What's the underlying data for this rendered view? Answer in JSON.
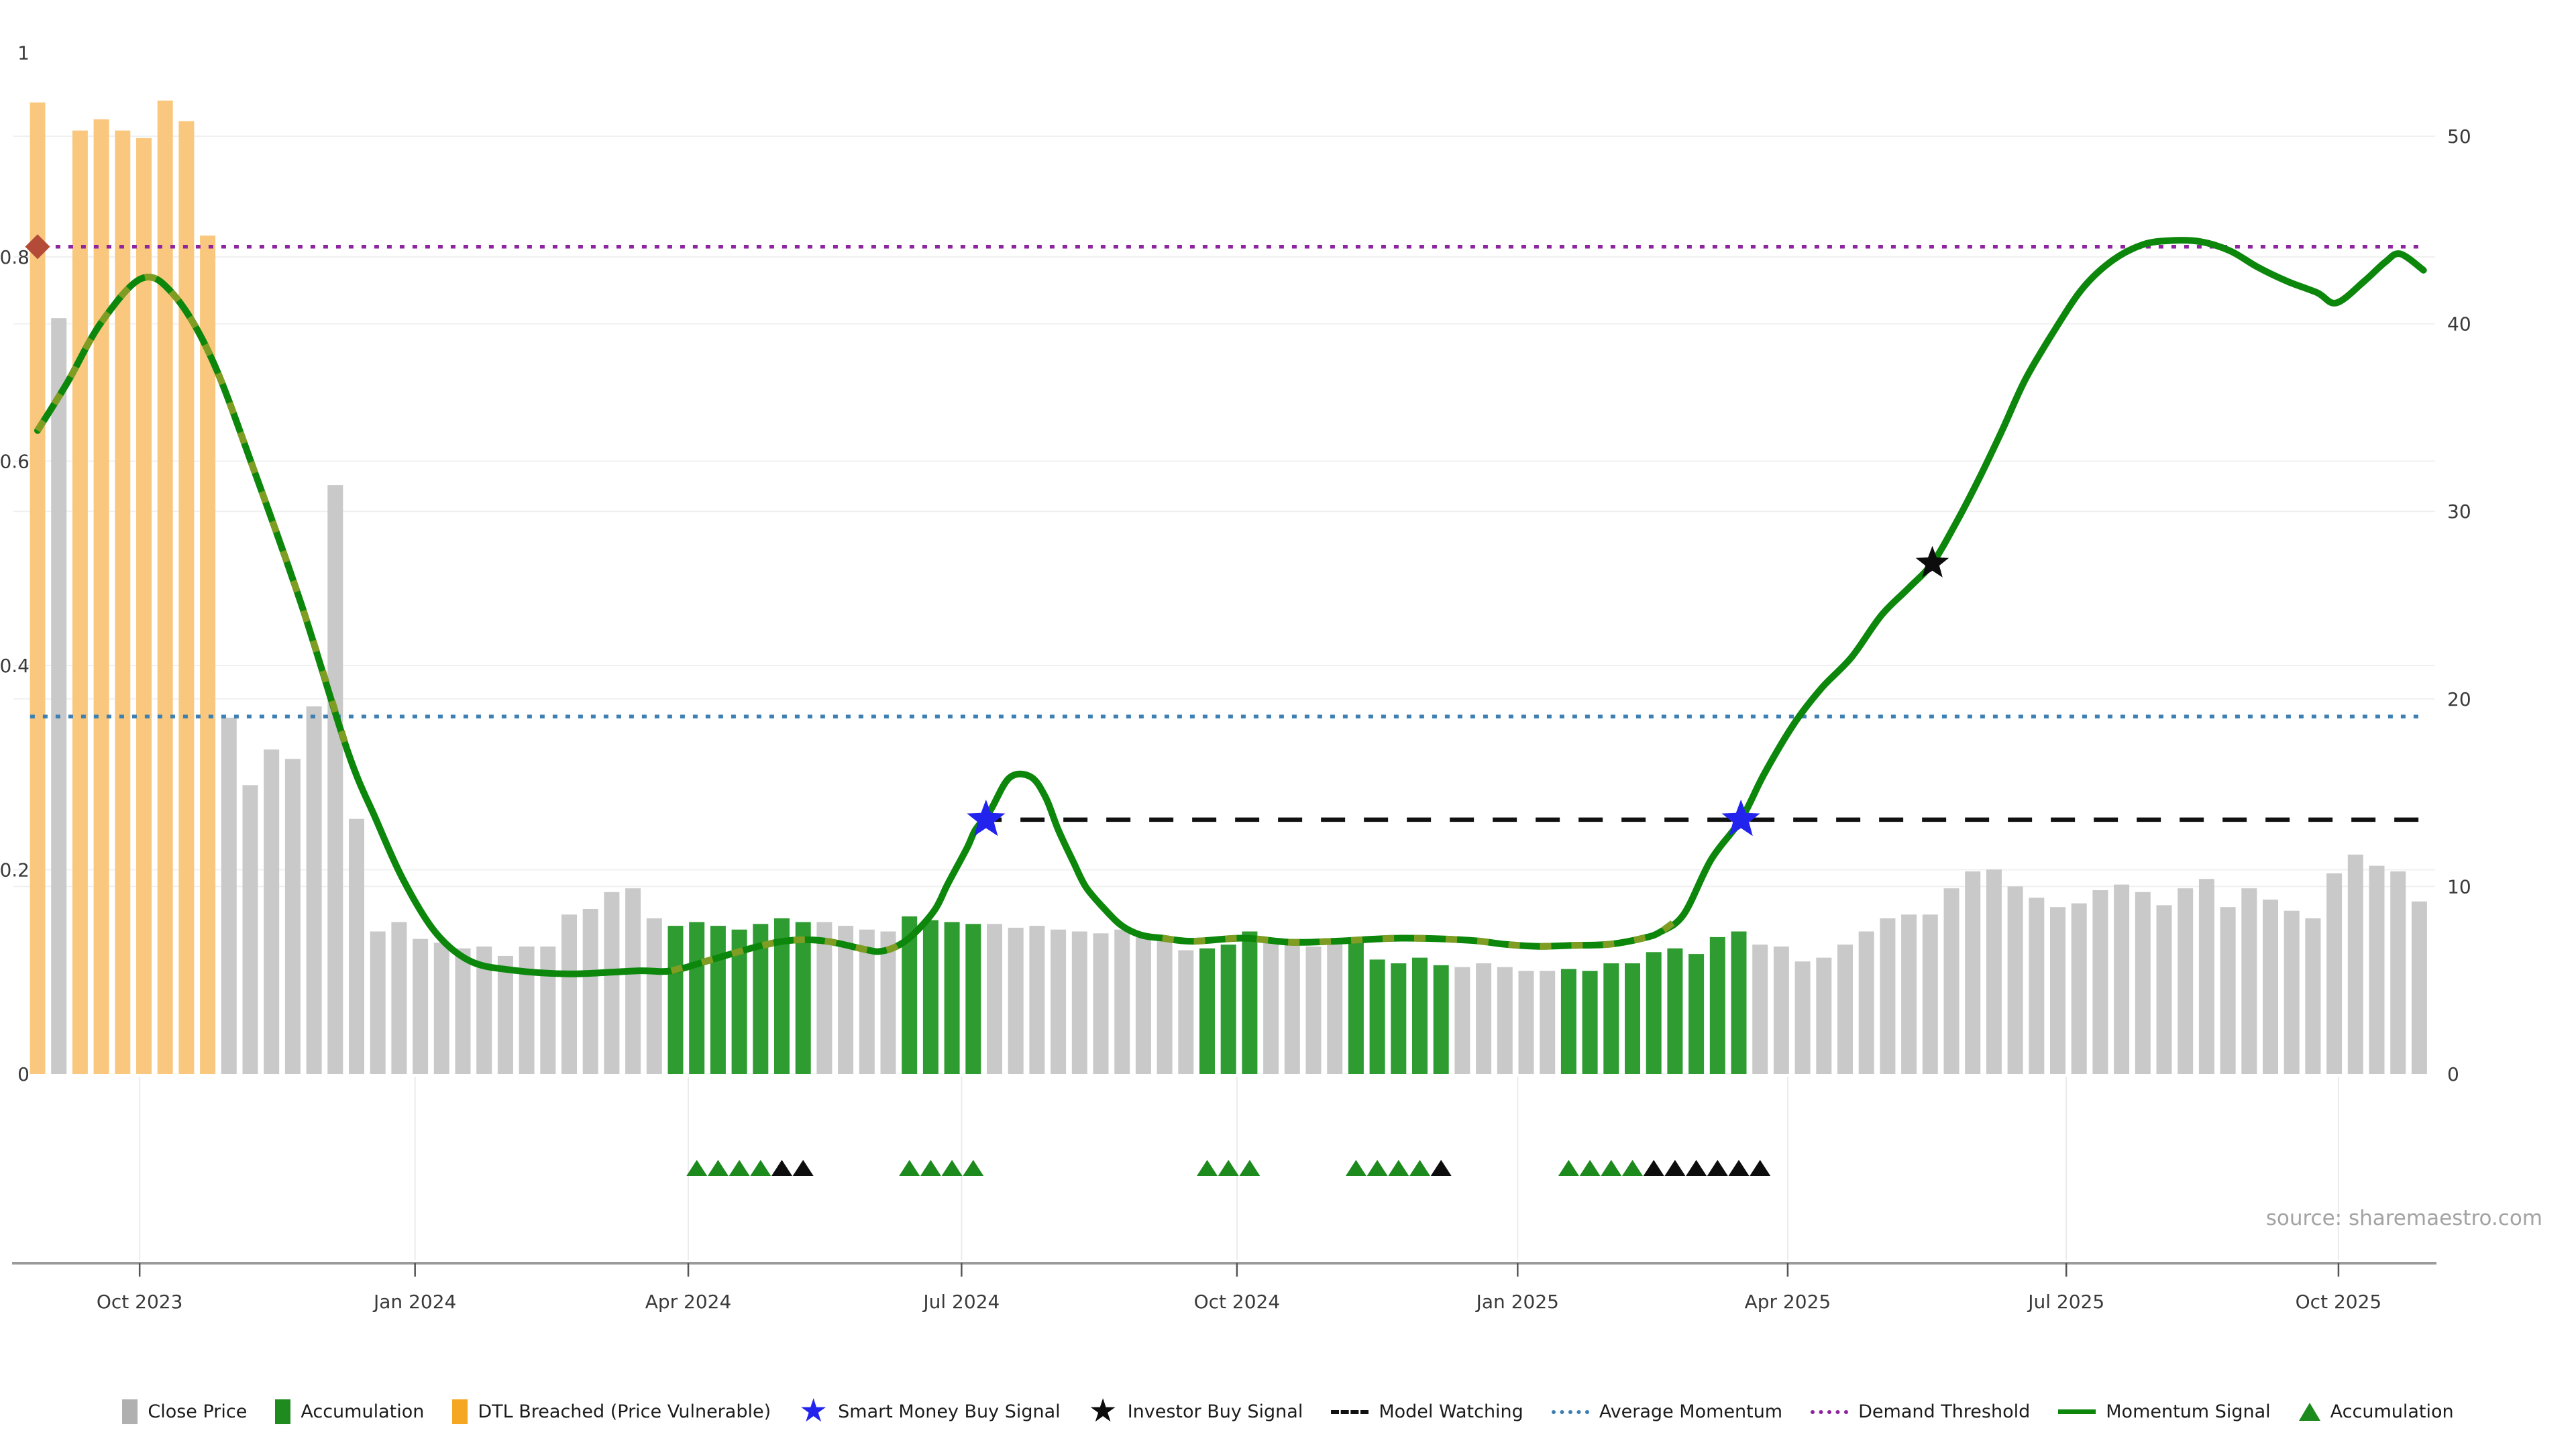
{
  "meta": {
    "source_note": "source: sharemaestro.com"
  },
  "colors": {
    "close_price_bar": "#c9c9c9",
    "accumulation_bar": "#2f9c31",
    "dtl_breached_bar": "#f9c87e",
    "legend_gray": "#b0b0b0",
    "legend_green": "#1f8b1f",
    "legend_orange": "#f5a623",
    "momentum_green": "#0c870c",
    "momentum_olive": "#7f9d23",
    "average_momentum_blue": "#3d7fb2",
    "demand_threshold_purple": "#8e24a0",
    "model_watching_black": "#111111",
    "smart_money_star_blue": "#2323ee",
    "investor_star_black": "#0d0d0d",
    "dtl_diamond_red": "#b44b38",
    "triangle_green": "#1d8a1d",
    "triangle_black": "#0d0d0d",
    "grid": "#f0f0f0",
    "axis_spine": "#9a9a9a",
    "tick_text": "#3a3a3a"
  },
  "legend": {
    "items": [
      {
        "label": "Close Price",
        "swatch": "square",
        "color": "#b0b0b0"
      },
      {
        "label": "Accumulation",
        "swatch": "square",
        "color": "#1f8b1f"
      },
      {
        "label": "DTL Breached (Price Vulnerable)",
        "swatch": "square",
        "color": "#f5a623"
      },
      {
        "label": "Smart Money Buy Signal",
        "swatch": "star",
        "color": "#2323ee"
      },
      {
        "label": "Investor Buy Signal",
        "swatch": "star",
        "color": "#0d0d0d"
      },
      {
        "label": "Model Watching",
        "swatch": "dash",
        "color": "#111111"
      },
      {
        "label": "Average Momentum",
        "swatch": "dot",
        "color": "#3d7fb2"
      },
      {
        "label": "Demand Threshold",
        "swatch": "dot",
        "color": "#8e24a0"
      },
      {
        "label": "Momentum Signal",
        "swatch": "line",
        "color": "#0c870c"
      },
      {
        "label": "Accumulation",
        "swatch": "triangle",
        "color": "#1d8a1d"
      }
    ]
  },
  "axes": {
    "left": {
      "labels": [
        "1",
        "0.8",
        "0.6",
        "0.4",
        "0.2",
        "0"
      ],
      "values": [
        1,
        0.8,
        0.6,
        0.4,
        0.2,
        0
      ]
    },
    "right": {
      "labels": [
        "50",
        "40",
        "30",
        "20",
        "10",
        "0"
      ],
      "values": [
        50,
        40,
        30,
        20,
        10,
        0
      ]
    },
    "x": {
      "tick_labels": [
        "Oct 2023",
        "Jan 2024",
        "Apr 2024",
        "Jul 2024",
        "Oct 2024",
        "Jan 2025",
        "Apr 2025",
        "Jul 2025",
        "Oct 2025"
      ],
      "tick_weeks": [
        4.8,
        17.75,
        30.6,
        43.45,
        56.4,
        69.6,
        82.3,
        95.4,
        108.2
      ]
    }
  },
  "chart_data": {
    "type": "combo bar+line",
    "x_axis": {
      "start_date": "2023-08-28",
      "interval": "weekly",
      "num_points": 113
    },
    "y_left": {
      "min": 0,
      "max": 1,
      "label": ""
    },
    "y_right": {
      "min": 0,
      "max": 52,
      "label": ""
    },
    "grid": "on",
    "legend_position": "bottom-center",
    "close_price": {
      "name": "Close Price",
      "type": "bar",
      "axis": "right",
      "values": [
        51.8,
        40.3,
        50.3,
        50.9,
        50.3,
        49.9,
        51.9,
        50.8,
        44.7,
        19,
        15.4,
        17.3,
        16.8,
        19.6,
        31.4,
        13.6,
        7.6,
        8.1,
        7.2,
        7,
        6.7,
        6.8,
        6.3,
        6.8,
        6.8,
        8.5,
        8.8,
        9.7,
        9.9,
        8.3,
        7.9,
        8.1,
        7.9,
        7.7,
        8,
        8.3,
        8.1,
        8.1,
        7.9,
        7.7,
        7.6,
        8.4,
        8.2,
        8.1,
        8,
        8,
        7.8,
        7.9,
        7.7,
        7.6,
        7.5,
        7.7,
        7.4,
        7.2,
        6.6,
        6.7,
        6.9,
        7.6,
        7.1,
        6.9,
        6.8,
        7,
        7.1,
        6.1,
        5.9,
        6.2,
        5.8,
        5.7,
        5.9,
        5.7,
        5.5,
        5.5,
        5.6,
        5.5,
        5.9,
        5.9,
        6.5,
        6.7,
        6.4,
        7.3,
        7.6,
        6.9,
        6.8,
        6,
        6.2,
        6.9,
        7.6,
        8.3,
        8.5,
        8.5,
        9.9,
        10.8,
        10.9,
        10,
        9.4,
        8.9,
        9.1,
        9.8,
        10.1,
        9.7,
        9,
        9.9,
        10.4,
        8.9,
        9.9,
        9.3,
        8.7,
        8.3,
        10.7,
        11.7,
        11.1,
        10.8,
        9.2
      ],
      "bar_states": "o.ooooooo.....................ggggggg....gggg..........ggg....ggggg.....ggggggggg................................",
      "state_key": {
        "o": "dtl_breached",
        "g": "accumulation",
        ".": "normal"
      }
    },
    "momentum_signal": {
      "name": "Momentum Signal",
      "type": "line",
      "axis": "left",
      "points": [
        [
          0,
          0.63
        ],
        [
          1.4,
          0.677
        ],
        [
          3,
          0.736
        ],
        [
          4.9,
          0.779
        ],
        [
          6.4,
          0.763
        ],
        [
          8.2,
          0.7
        ],
        [
          10.2,
          0.59
        ],
        [
          12.4,
          0.46
        ],
        [
          14.6,
          0.315
        ],
        [
          15.9,
          0.25
        ],
        [
          17.2,
          0.19
        ],
        [
          18.7,
          0.139
        ],
        [
          20.3,
          0.111
        ],
        [
          22.2,
          0.102
        ],
        [
          25,
          0.098
        ],
        [
          28.2,
          0.101
        ],
        [
          29.8,
          0.101
        ],
        [
          31.7,
          0.112
        ],
        [
          33.9,
          0.125
        ],
        [
          35.5,
          0.131
        ],
        [
          37.1,
          0.13
        ],
        [
          38.9,
          0.122
        ],
        [
          39.6,
          0.12
        ],
        [
          40.4,
          0.125
        ],
        [
          41.2,
          0.137
        ],
        [
          42.2,
          0.161
        ],
        [
          42.8,
          0.186
        ],
        [
          43.7,
          0.221
        ],
        [
          44.1,
          0.239
        ],
        [
          44.8,
          0.258
        ],
        [
          45.7,
          0.29
        ],
        [
          46.7,
          0.291
        ],
        [
          47.4,
          0.271
        ],
        [
          48,
          0.239
        ],
        [
          48.7,
          0.208
        ],
        [
          49.3,
          0.183
        ],
        [
          50.2,
          0.161
        ],
        [
          51,
          0.145
        ],
        [
          51.9,
          0.136
        ],
        [
          52.9,
          0.133
        ],
        [
          54.3,
          0.13
        ],
        [
          56.7,
          0.133
        ],
        [
          58.9,
          0.129
        ],
        [
          61,
          0.13
        ],
        [
          64.1,
          0.133
        ],
        [
          67.3,
          0.131
        ],
        [
          69,
          0.127
        ],
        [
          70.6,
          0.125
        ],
        [
          72.2,
          0.126
        ],
        [
          73.9,
          0.127
        ],
        [
          75.5,
          0.133
        ],
        [
          76.3,
          0.139
        ],
        [
          77.4,
          0.156
        ],
        [
          78.7,
          0.21
        ],
        [
          80.1,
          0.249
        ],
        [
          81.2,
          0.294
        ],
        [
          82.6,
          0.343
        ],
        [
          83.9,
          0.378
        ],
        [
          85.3,
          0.408
        ],
        [
          86.7,
          0.449
        ],
        [
          88,
          0.476
        ],
        [
          89.1,
          0.5
        ],
        [
          90.2,
          0.539
        ],
        [
          91.3,
          0.583
        ],
        [
          92.4,
          0.631
        ],
        [
          93.5,
          0.681
        ],
        [
          94.9,
          0.73
        ],
        [
          96.2,
          0.77
        ],
        [
          97.6,
          0.797
        ],
        [
          99,
          0.812
        ],
        [
          100.3,
          0.816
        ],
        [
          101.7,
          0.815
        ],
        [
          103.1,
          0.806
        ],
        [
          104.4,
          0.79
        ],
        [
          105.8,
          0.776
        ],
        [
          107.2,
          0.765
        ],
        [
          108.1,
          0.755
        ],
        [
          109.4,
          0.776
        ],
        [
          110.4,
          0.795
        ],
        [
          111.1,
          0.803
        ],
        [
          112.2,
          0.787
        ]
      ],
      "olive_dashed_segments_weeks": [
        [
          0,
          15.2
        ],
        [
          29.5,
          41.3
        ],
        [
          52.5,
          77.6
        ]
      ]
    },
    "reference_lines": [
      {
        "name": "Average Momentum",
        "axis": "left",
        "value": 0.35,
        "style": "dotted",
        "from_week": -0.35,
        "to_week": 112.2
      },
      {
        "name": "Demand Threshold",
        "axis": "left",
        "value": 0.81,
        "style": "dotted",
        "from_week": -0.35,
        "to_week": 112.2
      },
      {
        "name": "Model Watching",
        "axis": "left",
        "value": 0.249,
        "style": "dashed",
        "from_week": 44.2,
        "to_week": 112.4
      }
    ],
    "markers": {
      "smart_money_buy_signals": [
        {
          "week": 44.6,
          "value": 0.249
        },
        {
          "week": 80.1,
          "value": 0.249
        }
      ],
      "investor_buy_signals": [
        {
          "week": 89.1,
          "value": 0.5
        }
      ],
      "dtl_breach_diamond": {
        "week": 0,
        "value": 0.81
      },
      "accumulation_triangles": [
        {
          "week": 31,
          "color": "green"
        },
        {
          "week": 32,
          "color": "green"
        },
        {
          "week": 33,
          "color": "green"
        },
        {
          "week": 34,
          "color": "green"
        },
        {
          "week": 35,
          "color": "black"
        },
        {
          "week": 36,
          "color": "black"
        },
        {
          "week": 41,
          "color": "green"
        },
        {
          "week": 42,
          "color": "green"
        },
        {
          "week": 43,
          "color": "green"
        },
        {
          "week": 44,
          "color": "green"
        },
        {
          "week": 55,
          "color": "green"
        },
        {
          "week": 56,
          "color": "green"
        },
        {
          "week": 57,
          "color": "green"
        },
        {
          "week": 62,
          "color": "green"
        },
        {
          "week": 63,
          "color": "green"
        },
        {
          "week": 64,
          "color": "green"
        },
        {
          "week": 65,
          "color": "green"
        },
        {
          "week": 66,
          "color": "black"
        },
        {
          "week": 72,
          "color": "green"
        },
        {
          "week": 73,
          "color": "green"
        },
        {
          "week": 74,
          "color": "green"
        },
        {
          "week": 75,
          "color": "green"
        },
        {
          "week": 76,
          "color": "black"
        },
        {
          "week": 77,
          "color": "black"
        },
        {
          "week": 78,
          "color": "black"
        },
        {
          "week": 79,
          "color": "black"
        },
        {
          "week": 80,
          "color": "black"
        },
        {
          "week": 81,
          "color": "black"
        }
      ]
    }
  }
}
